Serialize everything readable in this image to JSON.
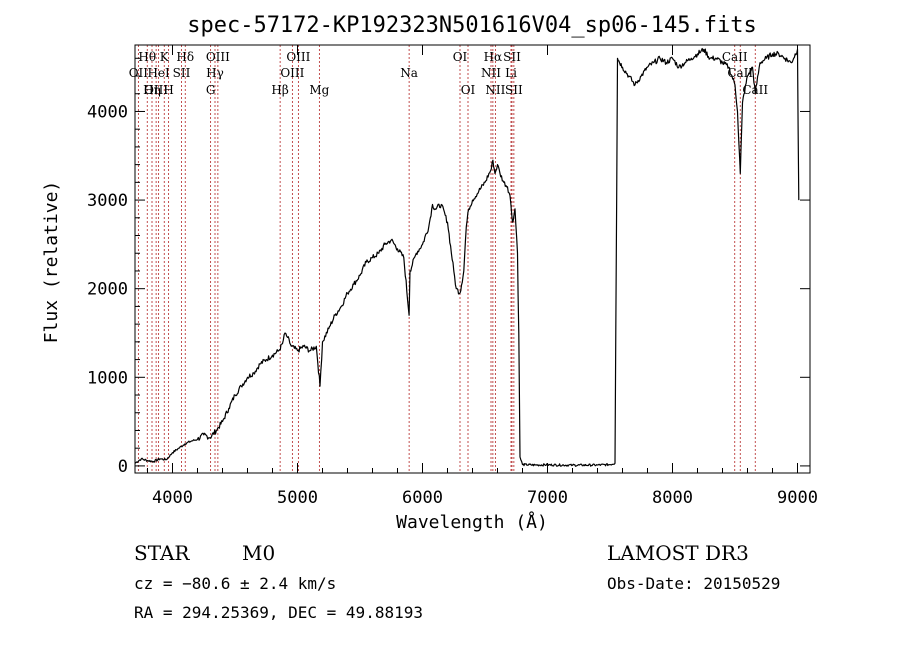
{
  "chart_data": {
    "type": "line",
    "title": "spec-57172-KP192323N501616V04_sp06-145.fits",
    "xlabel": "Wavelength (Å)",
    "ylabel": "Flux (relative)",
    "xlim": [
      3700,
      9100
    ],
    "ylim": [
      -80,
      4750
    ],
    "xticks": [
      4000,
      5000,
      6000,
      7000,
      8000,
      9000
    ],
    "yticks": [
      0,
      1000,
      2000,
      3000,
      4000
    ],
    "series": [
      {
        "name": "spectrum",
        "x": [
          3700,
          3750,
          3800,
          3850,
          3900,
          3950,
          4000,
          4050,
          4100,
          4150,
          4200,
          4250,
          4300,
          4350,
          4400,
          4450,
          4500,
          4550,
          4600,
          4650,
          4700,
          4750,
          4800,
          4850,
          4880,
          4900,
          4920,
          4950,
          5000,
          5050,
          5100,
          5150,
          5180,
          5200,
          5250,
          5300,
          5350,
          5400,
          5450,
          5500,
          5550,
          5600,
          5650,
          5700,
          5750,
          5800,
          5850,
          5893,
          5900,
          5950,
          6000,
          6050,
          6080,
          6100,
          6150,
          6200,
          6250,
          6270,
          6300,
          6330,
          6350,
          6370,
          6400,
          6450,
          6500,
          6550,
          6563,
          6580,
          6600,
          6620,
          6650,
          6680,
          6700,
          6720,
          6740,
          6760,
          6770,
          6780,
          6800,
          6900,
          7000,
          7200,
          7400,
          7500,
          7540,
          7560,
          7600,
          7650,
          7700,
          7750,
          7800,
          7850,
          7900,
          7950,
          8000,
          8050,
          8100,
          8150,
          8200,
          8250,
          8300,
          8350,
          8400,
          8450,
          8500,
          8520,
          8542,
          8560,
          8600,
          8640,
          8662,
          8700,
          8750,
          8800,
          8850,
          8900,
          8950,
          9000,
          9010
        ],
        "values": [
          30,
          80,
          60,
          50,
          80,
          70,
          150,
          200,
          250,
          280,
          300,
          350,
          320,
          400,
          500,
          650,
          800,
          900,
          1000,
          1050,
          1150,
          1200,
          1250,
          1300,
          1380,
          1500,
          1450,
          1350,
          1300,
          1350,
          1300,
          1350,
          900,
          1400,
          1550,
          1700,
          1800,
          1950,
          2050,
          2150,
          2300,
          2350,
          2400,
          2500,
          2550,
          2450,
          2350,
          1700,
          2200,
          2400,
          2500,
          2700,
          2950,
          2900,
          2950,
          2750,
          2200,
          2000,
          1950,
          2200,
          2700,
          2900,
          3000,
          3100,
          3200,
          3350,
          3450,
          3300,
          3400,
          3300,
          3200,
          3150,
          3050,
          2750,
          2900,
          2400,
          1500,
          100,
          15,
          10,
          12,
          8,
          10,
          15,
          30,
          4600,
          4500,
          4400,
          4300,
          4400,
          4500,
          4550,
          4600,
          4550,
          4600,
          4500,
          4550,
          4600,
          4650,
          4700,
          4600,
          4600,
          4550,
          4500,
          4300,
          4000,
          3300,
          4100,
          4400,
          4500,
          4200,
          4550,
          4600,
          4650,
          4650,
          4600,
          4550,
          4700,
          3000
        ]
      }
    ],
    "emission_lines": [
      {
        "name": "Hθ",
        "wavelength": 3798,
        "row": 1
      },
      {
        "name": "OII",
        "wavelength": 3727,
        "row": 2
      },
      {
        "name": "OIII",
        "wavelength": 3869,
        "row": 3
      },
      {
        "name": "Hη",
        "wavelength": 3836,
        "row": 3
      },
      {
        "name": "K",
        "wavelength": 3934,
        "row": 1
      },
      {
        "name": "HeI",
        "wavelength": 3889,
        "row": 2
      },
      {
        "name": "H",
        "wavelength": 3969,
        "row": 3
      },
      {
        "name": "Hδ",
        "wavelength": 4102,
        "row": 1
      },
      {
        "name": "SII",
        "wavelength": 4072,
        "row": 2
      },
      {
        "name": "OIII",
        "wavelength": 4363,
        "row": 1
      },
      {
        "name": "Hγ",
        "wavelength": 4340,
        "row": 2
      },
      {
        "name": "G",
        "wavelength": 4305,
        "row": 3
      },
      {
        "name": "Hβ",
        "wavelength": 4861,
        "row": 3
      },
      {
        "name": "OIII",
        "wavelength": 5007,
        "row": 1
      },
      {
        "name": "OIII",
        "wavelength": 4959,
        "row": 2
      },
      {
        "name": "Mg",
        "wavelength": 5175,
        "row": 3
      },
      {
        "name": "Na",
        "wavelength": 5893,
        "row": 2
      },
      {
        "name": "OI",
        "wavelength": 6300,
        "row": 1
      },
      {
        "name": "OI",
        "wavelength": 6364,
        "row": 3
      },
      {
        "name": "Hα",
        "wavelength": 6563,
        "row": 1
      },
      {
        "name": "NII",
        "wavelength": 6548,
        "row": 2
      },
      {
        "name": "NII",
        "wavelength": 6583,
        "row": 3
      },
      {
        "name": "SII",
        "wavelength": 6716,
        "row": 1
      },
      {
        "name": "Li",
        "wavelength": 6708,
        "row": 2
      },
      {
        "name": "SII",
        "wavelength": 6731,
        "row": 3
      },
      {
        "name": "CaII",
        "wavelength": 8498,
        "row": 1
      },
      {
        "name": "CaII",
        "wavelength": 8542,
        "row": 2
      },
      {
        "name": "CaII",
        "wavelength": 8662,
        "row": 3
      }
    ],
    "grid": false,
    "legend": "none"
  },
  "footer": {
    "object_class": "STAR",
    "subclass": "M0",
    "survey": "LAMOST DR3",
    "redshift": "cz = −80.6 ± 2.4 km/s",
    "obs_date": "Obs-Date: 20150529",
    "coords": "RA = 294.25369, DEC =  49.88193"
  },
  "colors": {
    "line_marker": "#b22222",
    "spectrum": "#000000"
  }
}
